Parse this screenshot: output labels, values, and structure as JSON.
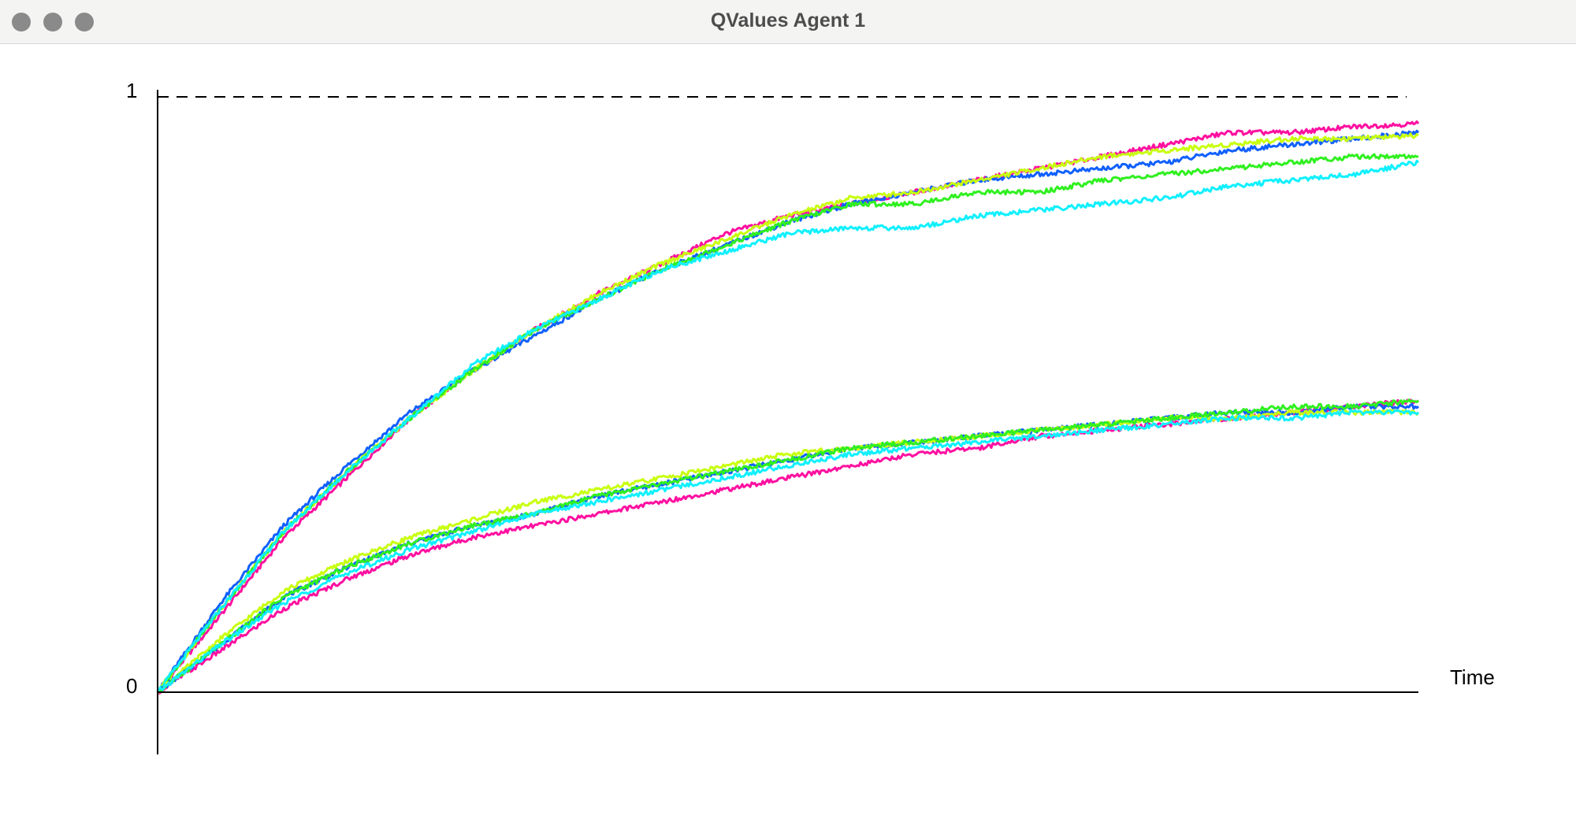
{
  "window": {
    "title": "QValues Agent 1"
  },
  "colors": {
    "titlebar_bg": "#f4f4f3",
    "traffic_lights": "#8a8a8a",
    "axis": "#000000"
  },
  "chart_data": {
    "type": "line",
    "title": "",
    "xlabel": "Time",
    "ylabel": "",
    "ylim": [
      0,
      1
    ],
    "yticks": [
      "0",
      "1"
    ],
    "reference_line": {
      "y": 1,
      "style": "dashed"
    },
    "grid": false,
    "legend": "none",
    "x": [
      0,
      0.05,
      0.1,
      0.15,
      0.2,
      0.25,
      0.3,
      0.35,
      0.4,
      0.45,
      0.5,
      0.55,
      0.6,
      0.65,
      0.7,
      0.75,
      0.8,
      0.85,
      0.9,
      0.95,
      1.0
    ],
    "series": [
      {
        "color": "#ff10a0",
        "values": [
          0,
          0.13,
          0.26,
          0.36,
          0.46,
          0.54,
          0.61,
          0.67,
          0.72,
          0.77,
          0.8,
          0.82,
          0.84,
          0.86,
          0.88,
          0.9,
          0.92,
          0.94,
          0.94,
          0.95,
          0.955
        ]
      },
      {
        "color": "#1060ff",
        "values": [
          0,
          0.15,
          0.28,
          0.38,
          0.47,
          0.54,
          0.6,
          0.66,
          0.71,
          0.75,
          0.79,
          0.82,
          0.84,
          0.86,
          0.87,
          0.88,
          0.89,
          0.91,
          0.92,
          0.93,
          0.94
        ]
      },
      {
        "color": "#c8ff10",
        "values": [
          0,
          0.14,
          0.27,
          0.37,
          0.46,
          0.54,
          0.61,
          0.67,
          0.72,
          0.76,
          0.8,
          0.83,
          0.84,
          0.86,
          0.88,
          0.9,
          0.91,
          0.92,
          0.93,
          0.93,
          0.935
        ]
      },
      {
        "color": "#30f020",
        "values": [
          0,
          0.14,
          0.27,
          0.37,
          0.46,
          0.54,
          0.61,
          0.66,
          0.71,
          0.75,
          0.79,
          0.82,
          0.82,
          0.84,
          0.84,
          0.86,
          0.87,
          0.88,
          0.89,
          0.9,
          0.9
        ]
      },
      {
        "color": "#10f0ff",
        "values": [
          0,
          0.14,
          0.27,
          0.37,
          0.46,
          0.55,
          0.61,
          0.66,
          0.71,
          0.74,
          0.77,
          0.78,
          0.78,
          0.8,
          0.81,
          0.82,
          0.83,
          0.85,
          0.86,
          0.87,
          0.89
        ]
      },
      {
        "color": "#ff10a0",
        "values": [
          0,
          0.07,
          0.14,
          0.19,
          0.23,
          0.26,
          0.28,
          0.3,
          0.32,
          0.34,
          0.36,
          0.38,
          0.4,
          0.41,
          0.43,
          0.44,
          0.45,
          0.46,
          0.47,
          0.48,
          0.49
        ]
      },
      {
        "color": "#1060ff",
        "values": [
          0,
          0.08,
          0.16,
          0.21,
          0.25,
          0.28,
          0.3,
          0.33,
          0.35,
          0.37,
          0.39,
          0.41,
          0.42,
          0.43,
          0.44,
          0.45,
          0.46,
          0.47,
          0.47,
          0.48,
          0.48
        ]
      },
      {
        "color": "#c8ff10",
        "values": [
          0,
          0.09,
          0.17,
          0.22,
          0.26,
          0.29,
          0.32,
          0.34,
          0.36,
          0.38,
          0.4,
          0.41,
          0.42,
          0.43,
          0.44,
          0.45,
          0.46,
          0.46,
          0.47,
          0.47,
          0.47
        ]
      },
      {
        "color": "#30f020",
        "values": [
          0,
          0.08,
          0.16,
          0.21,
          0.25,
          0.28,
          0.3,
          0.33,
          0.35,
          0.37,
          0.39,
          0.41,
          0.42,
          0.43,
          0.44,
          0.45,
          0.46,
          0.47,
          0.48,
          0.48,
          0.49
        ]
      },
      {
        "color": "#10f0ff",
        "values": [
          0,
          0.08,
          0.15,
          0.2,
          0.24,
          0.27,
          0.3,
          0.32,
          0.34,
          0.36,
          0.38,
          0.4,
          0.41,
          0.42,
          0.43,
          0.44,
          0.45,
          0.46,
          0.46,
          0.47,
          0.47
        ]
      }
    ]
  }
}
